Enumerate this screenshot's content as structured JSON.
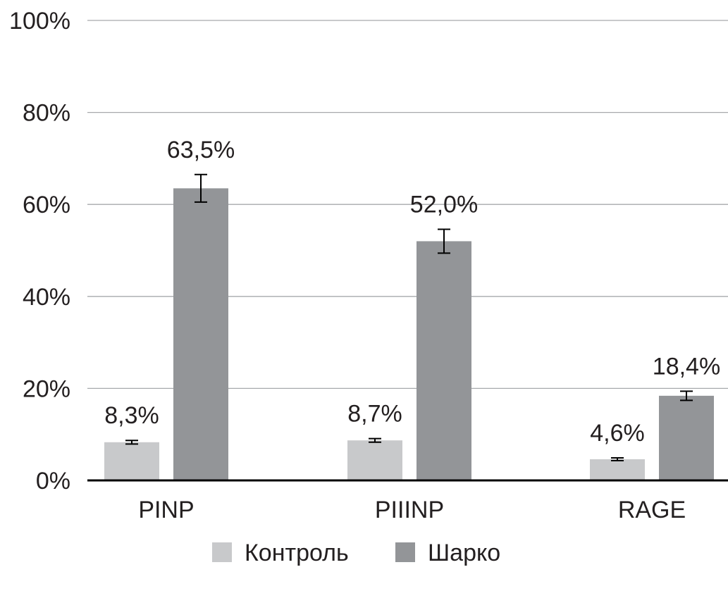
{
  "chart_data": {
    "type": "bar",
    "categories": [
      "PINP",
      "PIIINP",
      "RAGE"
    ],
    "series": [
      {
        "name": "Контроль",
        "color": "#c8c9cb",
        "values": [
          8.3,
          8.7,
          4.6
        ],
        "value_labels": [
          "8,3%",
          "8,7%",
          "4,6%"
        ],
        "error": [
          0.4,
          0.4,
          0.3
        ]
      },
      {
        "name": "Шарко",
        "color": "#939598",
        "values": [
          63.5,
          52.0,
          18.4
        ],
        "value_labels": [
          "63,5%",
          "52,0%",
          "18,4%"
        ],
        "error": [
          3.0,
          2.6,
          1.0
        ]
      }
    ],
    "title": "",
    "xlabel": "",
    "ylabel": "",
    "ylim": [
      0,
      100
    ],
    "yticks": [
      0,
      20,
      40,
      60,
      80,
      100
    ],
    "ytick_labels": [
      "0%",
      "20%",
      "40%",
      "60%",
      "80%",
      "100%"
    ],
    "grid": true,
    "legend_position": "bottom",
    "error_bars": true
  }
}
